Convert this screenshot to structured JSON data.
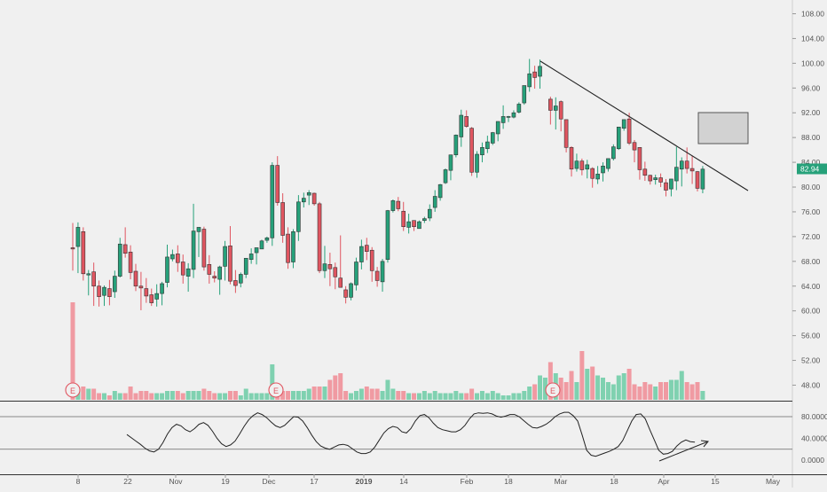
{
  "colors": {
    "background": "#f0f0f0",
    "up": "#26a17a",
    "down": "#e05560",
    "volume_up": "#7fd1b0",
    "volume_down": "#f09aa2",
    "wick": "#555555",
    "trendline": "#222222",
    "axis_text": "#555555",
    "price_badge": "#26a17a",
    "earnings_marker": "#e05560",
    "box_fill": "#d2d2d2"
  },
  "chart_data": [
    {
      "type": "candlestick",
      "title": "",
      "price_axis": {
        "ticks": [
          "108.00",
          "104.00",
          "100.00",
          "96.00",
          "92.00",
          "88.00",
          "84.00",
          "80.00",
          "76.00",
          "72.00",
          "68.00",
          "64.00",
          "60.00",
          "56.00",
          "52.00",
          "48.00"
        ],
        "range": [
          46.0,
          110.0
        ],
        "last_price_label": "82.94",
        "last_price": 82.94
      },
      "time_axis": {
        "tick_labels": [
          "8",
          "22",
          "Nov",
          "19",
          "Dec",
          "17",
          "2019",
          "14",
          "Feb",
          "18",
          "Mar",
          "18",
          "Apr",
          "15",
          "May"
        ]
      },
      "candles_ohlc": [
        [
          70.2,
          74.2,
          66.5,
          70.0
        ],
        [
          70.4,
          74.3,
          66.1,
          73.5
        ],
        [
          72.8,
          73.5,
          64.9,
          66.0
        ],
        [
          65.8,
          66.6,
          62.5,
          66.0
        ],
        [
          66.3,
          67.8,
          60.8,
          64.0
        ],
        [
          64.0,
          64.9,
          60.7,
          62.3
        ],
        [
          62.5,
          64.1,
          60.8,
          63.8
        ],
        [
          63.6,
          65.0,
          60.9,
          62.3
        ],
        [
          63.1,
          66.5,
          62.1,
          65.6
        ],
        [
          65.6,
          71.8,
          65.4,
          70.8
        ],
        [
          70.7,
          73.5,
          68.6,
          69.3
        ],
        [
          69.5,
          70.6,
          65.1,
          66.2
        ],
        [
          66.4,
          67.6,
          63.2,
          64.0
        ],
        [
          64.0,
          66.3,
          60.1,
          63.7
        ],
        [
          63.6,
          65.3,
          61.3,
          62.4
        ],
        [
          62.6,
          63.6,
          60.8,
          61.3
        ],
        [
          61.9,
          64.3,
          60.7,
          62.8
        ],
        [
          62.8,
          64.7,
          60.9,
          64.4
        ],
        [
          64.6,
          70.7,
          63.8,
          68.7
        ],
        [
          68.4,
          69.9,
          68.0,
          69.1
        ],
        [
          69.2,
          70.6,
          66.3,
          67.8
        ],
        [
          67.9,
          69.1,
          64.4,
          65.8
        ],
        [
          65.6,
          67.7,
          63.1,
          66.8
        ],
        [
          66.7,
          77.3,
          65.3,
          72.9
        ],
        [
          72.8,
          73.5,
          68.7,
          73.5
        ],
        [
          73.2,
          73.6,
          66.5,
          67.1
        ],
        [
          67.5,
          69.0,
          64.4,
          65.9
        ],
        [
          65.6,
          66.4,
          64.6,
          65.3
        ],
        [
          65.1,
          67.3,
          62.6,
          67.1
        ],
        [
          67.2,
          71.3,
          64.9,
          70.4
        ],
        [
          70.5,
          73.7,
          64.3,
          64.8
        ],
        [
          64.9,
          66.6,
          62.9,
          64.1
        ],
        [
          64.5,
          66.2,
          63.8,
          65.9
        ],
        [
          65.9,
          68.5,
          65.3,
          68.5
        ],
        [
          68.3,
          70.1,
          67.6,
          69.2
        ],
        [
          69.4,
          70.2,
          67.5,
          70.2
        ],
        [
          70.0,
          71.5,
          70.0,
          71.3
        ],
        [
          71.4,
          72.0,
          71.0,
          71.8
        ],
        [
          71.8,
          84.0,
          70.5,
          83.5
        ],
        [
          83.5,
          85.0,
          77.0,
          77.5
        ],
        [
          77.5,
          79.0,
          71.0,
          72.2
        ],
        [
          72.4,
          73.5,
          66.8,
          67.8
        ],
        [
          67.9,
          73.2,
          66.9,
          72.8
        ],
        [
          72.8,
          78.7,
          71.3,
          77.6
        ],
        [
          77.6,
          79.1,
          76.7,
          78.2
        ],
        [
          78.7,
          79.5,
          77.1,
          79.1
        ],
        [
          79.0,
          79.1,
          77.0,
          77.3
        ],
        [
          77.3,
          77.6,
          66.1,
          66.5
        ],
        [
          66.5,
          70.5,
          65.3,
          67.6
        ],
        [
          67.5,
          69.4,
          64.0,
          66.8
        ],
        [
          67.0,
          67.8,
          63.5,
          65.5
        ],
        [
          65.3,
          72.2,
          63.8,
          63.8
        ],
        [
          63.4,
          64.0,
          61.2,
          62.2
        ],
        [
          62.2,
          64.6,
          61.7,
          64.4
        ],
        [
          64.2,
          68.6,
          63.3,
          67.9
        ],
        [
          67.9,
          71.5,
          66.7,
          70.4
        ],
        [
          70.6,
          71.8,
          68.2,
          69.6
        ],
        [
          69.8,
          70.3,
          64.7,
          66.5
        ],
        [
          66.4,
          67.1,
          63.9,
          64.9
        ],
        [
          64.7,
          68.4,
          63.1,
          68.0
        ],
        [
          68.3,
          76.3,
          67.8,
          76.2
        ],
        [
          76.2,
          78.0,
          75.9,
          77.8
        ],
        [
          77.7,
          78.4,
          76.1,
          76.5
        ],
        [
          76.1,
          77.6,
          72.9,
          73.6
        ],
        [
          73.5,
          75.7,
          72.5,
          74.4
        ],
        [
          74.6,
          74.6,
          72.9,
          73.6
        ],
        [
          73.3,
          74.6,
          73.3,
          74.4
        ],
        [
          74.6,
          75.2,
          74.2,
          74.9
        ],
        [
          75.0,
          77.2,
          74.5,
          76.4
        ],
        [
          76.7,
          79.5,
          76.0,
          78.5
        ],
        [
          78.3,
          80.5,
          77.8,
          80.4
        ],
        [
          80.7,
          83.0,
          80.5,
          82.8
        ],
        [
          82.7,
          85.0,
          81.1,
          85.2
        ],
        [
          85.2,
          88.5,
          84.8,
          88.4
        ],
        [
          88.1,
          92.5,
          86.5,
          91.6
        ],
        [
          91.4,
          92.4,
          89.6,
          89.8
        ],
        [
          89.5,
          89.7,
          81.8,
          82.4
        ],
        [
          82.4,
          85.8,
          81.5,
          85.3
        ],
        [
          85.2,
          87.2,
          84.0,
          86.4
        ],
        [
          86.2,
          88.3,
          85.5,
          87.3
        ],
        [
          87.1,
          88.9,
          86.8,
          88.8
        ],
        [
          88.6,
          90.6,
          87.4,
          90.6
        ],
        [
          90.4,
          93.2,
          89.4,
          91.4
        ],
        [
          91.3,
          91.5,
          90.5,
          91.4
        ],
        [
          91.3,
          92.4,
          91.1,
          92.0
        ],
        [
          92.1,
          93.7,
          91.9,
          93.4
        ],
        [
          93.6,
          96.4,
          93.3,
          96.4
        ],
        [
          96.2,
          100.7,
          95.4,
          98.3
        ],
        [
          98.6,
          99.6,
          95.9,
          97.7
        ],
        [
          97.9,
          100.6,
          95.9,
          99.5
        ],
        [
          94.2,
          94.6,
          90.1,
          92.4
        ],
        [
          92.4,
          94.5,
          89.3,
          93.1
        ],
        [
          93.8,
          94.0,
          89.0,
          91.0
        ],
        [
          90.9,
          90.8,
          85.6,
          86.4
        ],
        [
          86.4,
          86.6,
          81.7,
          82.9
        ],
        [
          83.0,
          85.4,
          82.5,
          84.2
        ],
        [
          84.2,
          84.6,
          81.9,
          82.8
        ],
        [
          82.9,
          84.4,
          81.4,
          83.6
        ],
        [
          83.0,
          83.2,
          79.9,
          81.4
        ],
        [
          81.3,
          83.4,
          80.5,
          82.1
        ],
        [
          82.3,
          84.0,
          80.9,
          83.4
        ],
        [
          83.0,
          84.4,
          82.5,
          84.6
        ],
        [
          84.6,
          86.9,
          84.3,
          86.5
        ],
        [
          86.2,
          89.6,
          86.0,
          89.7
        ],
        [
          89.5,
          90.9,
          89.1,
          90.9
        ],
        [
          91.0,
          92.0,
          86.8,
          87.1
        ],
        [
          87.2,
          87.6,
          84.0,
          86.0
        ],
        [
          86.4,
          86.4,
          81.2,
          82.8
        ],
        [
          82.9,
          84.1,
          81.0,
          81.9
        ],
        [
          81.9,
          82.0,
          80.4,
          81.0
        ],
        [
          81.2,
          82.0,
          80.4,
          81.5
        ],
        [
          81.5,
          82.2,
          80.0,
          80.8
        ],
        [
          80.7,
          81.3,
          78.5,
          79.5
        ],
        [
          79.7,
          81.3,
          78.5,
          81.3
        ],
        [
          81.0,
          86.5,
          79.5,
          83.2
        ],
        [
          82.9,
          84.8,
          80.1,
          84.2
        ],
        [
          84.2,
          86.4,
          82.2,
          83.0
        ],
        [
          83.0,
          85.1,
          80.5,
          82.6
        ],
        [
          82.5,
          82.6,
          79.3,
          79.8
        ],
        [
          79.7,
          83.4,
          79.0,
          82.9
        ]
      ],
      "candle_times": [
        0,
        1,
        2,
        3,
        4,
        5,
        6,
        7,
        8,
        9,
        10,
        11,
        12,
        13,
        14,
        15,
        16,
        17,
        18,
        19,
        20,
        21,
        22,
        23,
        24,
        25,
        26,
        27,
        28,
        29,
        30,
        31,
        32,
        33,
        34,
        35,
        36,
        37,
        38,
        39,
        40,
        41,
        42,
        43,
        44,
        45,
        46,
        47,
        48,
        49,
        50,
        51,
        52,
        53,
        54,
        55,
        56,
        57,
        58,
        59,
        60,
        61,
        62,
        63,
        64,
        65,
        66,
        67,
        68,
        69,
        70,
        71,
        72,
        73,
        74,
        75,
        76,
        77,
        78,
        79,
        80,
        81,
        82,
        83,
        84,
        85,
        86,
        87,
        88,
        89,
        91,
        92,
        93,
        94,
        95,
        96,
        97,
        98,
        99,
        100,
        101,
        102,
        103,
        104,
        105,
        106,
        107,
        108,
        109,
        110,
        111,
        112,
        113,
        114,
        115,
        116,
        117,
        118,
        119,
        120
      ],
      "volume": [
        44,
        5,
        6,
        5,
        5,
        3,
        3,
        2,
        4,
        3,
        3,
        6,
        3,
        4,
        4,
        3,
        3,
        3,
        4,
        4,
        4,
        3,
        4,
        4,
        4,
        5,
        4,
        3,
        3,
        3,
        4,
        4,
        2,
        5,
        3,
        3,
        3,
        3,
        16,
        5,
        4,
        4,
        4,
        4,
        4,
        5,
        6,
        6,
        6,
        9,
        11,
        12,
        4,
        3,
        4,
        5,
        6,
        5,
        5,
        4,
        9,
        5,
        4,
        4,
        3,
        3,
        3,
        4,
        3,
        4,
        3,
        3,
        3,
        4,
        3,
        3,
        5,
        3,
        4,
        3,
        4,
        3,
        2,
        2,
        3,
        3,
        4,
        6,
        7,
        11,
        10,
        17,
        12,
        10,
        8,
        13,
        8,
        22,
        14,
        15,
        11,
        10,
        8,
        7,
        11,
        12,
        14,
        7,
        6,
        8,
        7,
        6,
        8,
        8,
        9,
        9,
        13,
        8,
        7,
        8,
        4
      ]
    },
    {
      "type": "line",
      "title": "",
      "y_ticks": [
        "80.0000",
        "40.0000",
        "0.0000"
      ],
      "y_range": [
        -18,
        100
      ],
      "reference_lines": [
        80,
        20
      ],
      "values": [
        47,
        41,
        35,
        29,
        22,
        17,
        15,
        20,
        32,
        48,
        60,
        66,
        63,
        56,
        52,
        58,
        66,
        69,
        64,
        53,
        40,
        30,
        25,
        28,
        35,
        48,
        62,
        74,
        82,
        87,
        84,
        78,
        70,
        63,
        60,
        64,
        72,
        80,
        79,
        72,
        60,
        46,
        34,
        26,
        22,
        20,
        24,
        28,
        29,
        27,
        21,
        15,
        12,
        12,
        15,
        24,
        37,
        50,
        58,
        62,
        60,
        52,
        50,
        58,
        72,
        82,
        84,
        78,
        68,
        60,
        56,
        54,
        52,
        52,
        56,
        64,
        76,
        85,
        87,
        86,
        87,
        85,
        81,
        79,
        81,
        84,
        84,
        80,
        73,
        66,
        60,
        59,
        62,
        66,
        72,
        80,
        85,
        88,
        88,
        82,
        72,
        46,
        18,
        9,
        7,
        10,
        13,
        16,
        20,
        25,
        36,
        54,
        72,
        84,
        85,
        76,
        56,
        37,
        18,
        11,
        12,
        16,
        26,
        33,
        37,
        34,
        33
      ]
    }
  ]
}
